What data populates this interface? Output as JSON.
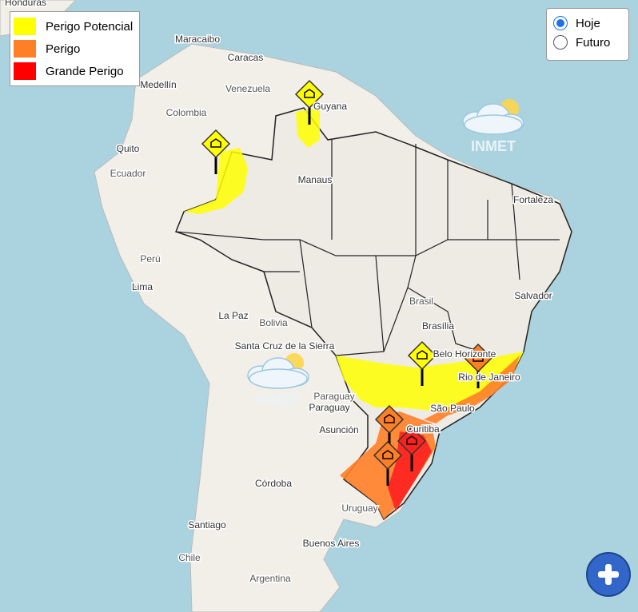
{
  "legend": {
    "items": [
      {
        "label": "Perigo Potencial",
        "color": "#ffff00"
      },
      {
        "label": "Perigo",
        "color": "#ff7f27"
      },
      {
        "label": "Grande Perigo",
        "color": "#ff0000"
      }
    ]
  },
  "view_options": [
    {
      "label": "Hoje",
      "selected": true
    },
    {
      "label": "Futuro",
      "selected": false
    }
  ],
  "logos": [
    "INMET",
    "INMET"
  ],
  "places": [
    "Honduras",
    "Maracaibo",
    "Caracas",
    "Medellín",
    "Venezuela",
    "Colombia",
    "Guyana",
    "Quito",
    "Ecuador",
    "Manaus",
    "Fortaleza",
    "Perú",
    "Lima",
    "Brasil",
    "Salvador",
    "Brasília",
    "Belo Horizonte",
    "Rio de Janeiro",
    "La Paz",
    "Bolivia",
    "Santa Cruz de la Sierra",
    "Paraguay",
    "Paraguay",
    "Asunción",
    "São Paulo",
    "Curitiba",
    "Córdoba",
    "Santiago",
    "Chile",
    "Uruguay",
    "Buenos Aires",
    "Argentina"
  ]
}
